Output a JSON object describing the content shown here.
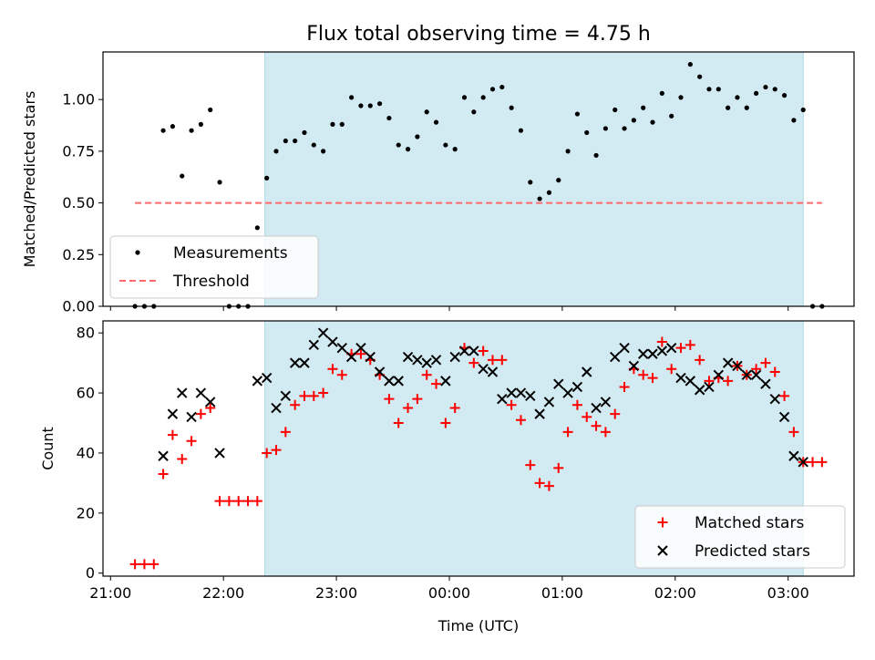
{
  "title": "Flux total observing time = 4.75 h",
  "x_axis": {
    "label": "Time (UTC)",
    "ticks": [
      {
        "minute": 1260,
        "label": "21:00"
      },
      {
        "minute": 1320,
        "label": "22:00"
      },
      {
        "minute": 1380,
        "label": "23:00"
      },
      {
        "minute": 1440,
        "label": "00:00"
      },
      {
        "minute": 1500,
        "label": "01:00"
      },
      {
        "minute": 1560,
        "label": "02:00"
      },
      {
        "minute": 1620,
        "label": "03:00"
      }
    ],
    "xlim_minutes": [
      1256,
      1655
    ]
  },
  "colors": {
    "observing_span": "#add8e6",
    "measurement": "#000000",
    "threshold": "#ff6b6b",
    "matched": "#ff0000",
    "predicted": "#000000"
  },
  "chart_data": [
    {
      "type": "scatter",
      "panel": "top",
      "ylabel": "Matched/Predicted stars",
      "ylim": [
        0,
        1.23
      ],
      "yticks": [
        "0.00",
        "0.25",
        "0.50",
        "0.75",
        "1.00"
      ],
      "observing_span_minutes": [
        1342,
        1628
      ],
      "threshold": {
        "y": 0.5,
        "x_minutes": [
          1273,
          1638
        ]
      },
      "legend": {
        "position": "lower-left",
        "entries": [
          "Measurements",
          "Threshold"
        ]
      },
      "series": [
        {
          "name": "Measurements",
          "x_minutes": [
            1273,
            1278,
            1283,
            1288,
            1293,
            1298,
            1303,
            1308,
            1313,
            1318,
            1323,
            1328,
            1333,
            1338,
            1343,
            1348,
            1353,
            1358,
            1363,
            1368,
            1373,
            1378,
            1383,
            1388,
            1393,
            1398,
            1403,
            1408,
            1413,
            1418,
            1423,
            1428,
            1433,
            1438,
            1443,
            1448,
            1453,
            1458,
            1463,
            1468,
            1473,
            1478,
            1483,
            1488,
            1493,
            1498,
            1503,
            1508,
            1513,
            1518,
            1523,
            1528,
            1533,
            1538,
            1543,
            1548,
            1553,
            1558,
            1563,
            1568,
            1573,
            1578,
            1583,
            1588,
            1593,
            1598,
            1603,
            1608,
            1613,
            1618,
            1623,
            1628,
            1633,
            1638
          ],
          "y": [
            0.0,
            0.0,
            0.0,
            0.85,
            0.87,
            0.63,
            0.85,
            0.88,
            0.95,
            0.6,
            0.0,
            0.0,
            0.0,
            0.38,
            0.62,
            0.75,
            0.8,
            0.8,
            0.84,
            0.78,
            0.75,
            0.88,
            0.88,
            1.01,
            0.97,
            0.97,
            0.98,
            0.91,
            0.78,
            0.76,
            0.82,
            0.94,
            0.89,
            0.78,
            0.76,
            1.01,
            0.94,
            1.01,
            1.05,
            1.06,
            0.96,
            0.85,
            0.6,
            0.52,
            0.55,
            0.61,
            0.75,
            0.93,
            0.84,
            0.73,
            0.86,
            0.95,
            0.86,
            0.9,
            0.96,
            0.89,
            1.03,
            0.92,
            1.01,
            1.17,
            1.11,
            1.05,
            1.05,
            0.96,
            1.01,
            0.96,
            1.03,
            1.06,
            1.05,
            1.02,
            0.9,
            0.95,
            0.0,
            0.0
          ]
        }
      ]
    },
    {
      "type": "scatter",
      "panel": "bottom",
      "ylabel": "Count",
      "ylim": [
        -1,
        84
      ],
      "yticks": [
        "0",
        "20",
        "40",
        "60",
        "80"
      ],
      "observing_span_minutes": [
        1342,
        1628
      ],
      "legend": {
        "position": "lower-right",
        "entries": [
          "Matched stars",
          "Predicted stars"
        ]
      },
      "series": [
        {
          "name": "Matched stars",
          "marker": "plus",
          "x_minutes": [
            1273,
            1278,
            1283,
            1288,
            1293,
            1298,
            1303,
            1308,
            1313,
            1318,
            1323,
            1328,
            1333,
            1338,
            1343,
            1348,
            1353,
            1358,
            1363,
            1368,
            1373,
            1378,
            1383,
            1388,
            1393,
            1398,
            1403,
            1408,
            1413,
            1418,
            1423,
            1428,
            1433,
            1438,
            1443,
            1448,
            1453,
            1458,
            1463,
            1468,
            1473,
            1478,
            1483,
            1488,
            1493,
            1498,
            1503,
            1508,
            1513,
            1518,
            1523,
            1528,
            1533,
            1538,
            1543,
            1548,
            1553,
            1558,
            1563,
            1568,
            1573,
            1578,
            1583,
            1588,
            1593,
            1598,
            1603,
            1608,
            1613,
            1618,
            1623,
            1628,
            1633,
            1638
          ],
          "y": [
            3,
            3,
            3,
            33,
            46,
            38,
            44,
            53,
            55,
            24,
            24,
            24,
            24,
            24,
            40,
            41,
            47,
            56,
            59,
            59,
            60,
            68,
            66,
            73,
            73,
            71,
            66,
            58,
            50,
            55,
            58,
            66,
            63,
            50,
            55,
            75,
            70,
            74,
            71,
            71,
            56,
            51,
            36,
            30,
            29,
            35,
            47,
            56,
            52,
            49,
            47,
            53,
            62,
            68,
            66,
            65,
            77,
            68,
            75,
            76,
            71,
            64,
            65,
            64,
            69,
            66,
            68,
            70,
            67,
            59,
            47,
            37,
            37,
            37
          ]
        },
        {
          "name": "Predicted stars",
          "marker": "x",
          "x_minutes": [
            1288,
            1293,
            1298,
            1303,
            1308,
            1313,
            1318,
            1338,
            1343,
            1348,
            1353,
            1358,
            1363,
            1368,
            1373,
            1378,
            1383,
            1388,
            1393,
            1398,
            1403,
            1408,
            1413,
            1418,
            1423,
            1428,
            1433,
            1438,
            1443,
            1448,
            1453,
            1458,
            1463,
            1468,
            1473,
            1478,
            1483,
            1488,
            1493,
            1498,
            1503,
            1508,
            1513,
            1518,
            1523,
            1528,
            1533,
            1538,
            1543,
            1548,
            1553,
            1558,
            1563,
            1568,
            1573,
            1578,
            1583,
            1588,
            1593,
            1598,
            1603,
            1608,
            1613,
            1618,
            1623,
            1628
          ],
          "y": [
            39,
            53,
            60,
            52,
            60,
            57,
            40,
            64,
            65,
            55,
            59,
            70,
            70,
            76,
            80,
            77,
            75,
            72,
            75,
            72,
            67,
            64,
            64,
            72,
            71,
            70,
            71,
            64,
            72,
            74,
            74,
            68,
            67,
            58,
            60,
            60,
            59,
            53,
            57,
            63,
            60,
            62,
            67,
            55,
            57,
            72,
            75,
            69,
            73,
            73,
            74,
            75,
            65,
            64,
            61,
            62,
            66,
            70,
            69,
            66,
            66,
            63,
            58,
            52,
            39,
            37
          ]
        }
      ]
    }
  ]
}
